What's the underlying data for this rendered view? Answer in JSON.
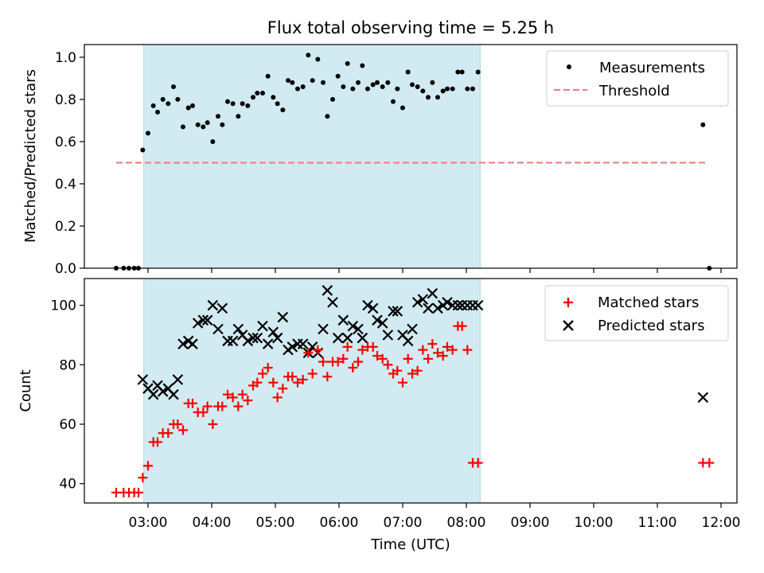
{
  "title": "Flux total observing time = 5.25 h",
  "colors": {
    "measurement": "#000000",
    "threshold": "#f08080",
    "matched": "#ff0000",
    "predicted": "#000000",
    "shade": "#add8e6"
  },
  "chart_data": [
    {
      "type": "scatter",
      "ylabel": "Matched/Predicted stars",
      "ylim": [
        0,
        1.06
      ],
      "yticks": [
        "0.0",
        "0.2",
        "0.4",
        "0.6",
        "0.8",
        "1.0"
      ],
      "yticks_values": [
        0,
        0.2,
        0.4,
        0.6,
        0.8,
        1.0
      ],
      "shaded_span": [
        "02:56",
        "08:13"
      ],
      "legend": {
        "placement": "top-right",
        "entries": [
          "Measurements",
          "Threshold"
        ]
      },
      "threshold": {
        "name": "Threshold",
        "value": 0.5,
        "x_start": "02:30",
        "x_end": "11:48"
      },
      "series": [
        {
          "name": "Measurements",
          "marker": "dot",
          "x": [
            "02:30",
            "02:37",
            "02:42",
            "02:47",
            "02:51",
            "02:55",
            "03:00",
            "03:05",
            "03:09",
            "03:14",
            "03:19",
            "03:24",
            "03:28",
            "03:33",
            "03:38",
            "03:42",
            "03:47",
            "03:52",
            "03:56",
            "04:01",
            "04:06",
            "04:10",
            "04:15",
            "04:20",
            "04:25",
            "04:29",
            "04:34",
            "04:39",
            "04:43",
            "04:48",
            "04:53",
            "04:58",
            "05:02",
            "05:07",
            "05:12",
            "05:16",
            "05:21",
            "05:26",
            "05:31",
            "05:35",
            "05:40",
            "05:45",
            "05:49",
            "05:54",
            "05:59",
            "06:04",
            "06:08",
            "06:13",
            "06:18",
            "06:22",
            "06:27",
            "06:32",
            "06:36",
            "06:41",
            "06:46",
            "06:51",
            "06:55",
            "07:00",
            "07:05",
            "07:09",
            "07:14",
            "07:19",
            "07:24",
            "07:28",
            "07:33",
            "07:38",
            "07:42",
            "07:47",
            "07:52",
            "07:56",
            "08:01",
            "08:06",
            "08:11",
            "11:43",
            "11:49"
          ],
          "y": [
            0.0,
            0.0,
            0.0,
            0.0,
            0.0,
            0.56,
            0.64,
            0.77,
            0.74,
            0.8,
            0.78,
            0.86,
            0.8,
            0.67,
            0.76,
            0.77,
            0.68,
            0.67,
            0.69,
            0.6,
            0.72,
            0.68,
            0.79,
            0.78,
            0.72,
            0.78,
            0.77,
            0.81,
            0.83,
            0.83,
            0.91,
            0.81,
            0.78,
            0.75,
            0.89,
            0.88,
            0.85,
            0.86,
            1.01,
            0.89,
            0.99,
            0.88,
            0.72,
            0.8,
            0.91,
            0.86,
            0.97,
            0.85,
            0.88,
            0.96,
            0.85,
            0.87,
            0.88,
            0.86,
            0.88,
            0.79,
            0.85,
            0.76,
            0.93,
            0.87,
            0.86,
            0.84,
            0.81,
            0.88,
            0.81,
            0.84,
            0.85,
            0.85,
            0.93,
            0.93,
            0.85,
            0.85,
            0.93,
            0.68,
            0.0
          ]
        }
      ]
    },
    {
      "type": "scatter",
      "xlabel": "Time (UTC)",
      "ylabel": "Count",
      "ylim": [
        33.5,
        109
      ],
      "yticks": [
        "40",
        "60",
        "80",
        "100"
      ],
      "yticks_values": [
        40,
        60,
        80,
        100
      ],
      "xlim": [
        "02:00",
        "12:15"
      ],
      "xticks": [
        "03:00",
        "04:00",
        "05:00",
        "06:00",
        "07:00",
        "08:00",
        "09:00",
        "10:00",
        "11:00",
        "12:00"
      ],
      "shaded_span": [
        "02:56",
        "08:13"
      ],
      "legend": {
        "placement": "top-right",
        "entries": [
          "Matched stars",
          "Predicted stars"
        ]
      },
      "series": [
        {
          "name": "Matched stars",
          "marker": "plus",
          "x": [
            "02:30",
            "02:37",
            "02:42",
            "02:47",
            "02:51",
            "02:55",
            "03:00",
            "03:05",
            "03:09",
            "03:14",
            "03:19",
            "03:24",
            "03:28",
            "03:33",
            "03:38",
            "03:42",
            "03:47",
            "03:52",
            "03:56",
            "04:01",
            "04:06",
            "04:10",
            "04:15",
            "04:20",
            "04:25",
            "04:29",
            "04:34",
            "04:39",
            "04:43",
            "04:48",
            "04:53",
            "04:58",
            "05:02",
            "05:07",
            "05:12",
            "05:16",
            "05:21",
            "05:26",
            "05:31",
            "05:35",
            "05:40",
            "05:45",
            "05:49",
            "05:54",
            "05:59",
            "06:04",
            "06:08",
            "06:13",
            "06:18",
            "06:22",
            "06:27",
            "06:32",
            "06:36",
            "06:41",
            "06:46",
            "06:51",
            "06:55",
            "07:00",
            "07:05",
            "07:09",
            "07:14",
            "07:19",
            "07:24",
            "07:28",
            "07:33",
            "07:38",
            "07:42",
            "07:47",
            "07:52",
            "07:56",
            "08:01",
            "08:06",
            "08:11",
            "11:43",
            "11:49"
          ],
          "y": [
            37,
            37,
            37,
            37,
            37,
            42,
            46,
            54,
            54,
            57,
            57,
            60,
            60,
            58,
            67,
            67,
            64,
            64,
            66,
            60,
            66,
            66,
            70,
            69,
            66,
            70,
            68,
            73,
            74,
            77,
            79,
            74,
            69,
            72,
            76,
            76,
            74,
            75,
            84,
            77,
            85,
            81,
            76,
            81,
            81,
            82,
            86,
            79,
            81,
            85,
            86,
            86,
            83,
            82,
            80,
            77,
            78,
            74,
            82,
            77,
            78,
            85,
            82,
            87,
            84,
            83,
            86,
            85,
            93,
            93,
            85,
            47,
            47,
            47,
            47
          ]
        },
        {
          "name": "Predicted stars",
          "marker": "x",
          "x": [
            "02:55",
            "03:00",
            "03:05",
            "03:09",
            "03:14",
            "03:19",
            "03:24",
            "03:28",
            "03:33",
            "03:38",
            "03:42",
            "03:47",
            "03:52",
            "03:56",
            "04:01",
            "04:06",
            "04:10",
            "04:15",
            "04:20",
            "04:25",
            "04:29",
            "04:34",
            "04:39",
            "04:43",
            "04:48",
            "04:53",
            "04:58",
            "05:02",
            "05:07",
            "05:12",
            "05:16",
            "05:21",
            "05:26",
            "05:31",
            "05:35",
            "05:40",
            "05:45",
            "05:49",
            "05:54",
            "05:59",
            "06:04",
            "06:08",
            "06:13",
            "06:18",
            "06:22",
            "06:27",
            "06:32",
            "06:36",
            "06:41",
            "06:46",
            "06:51",
            "06:55",
            "07:00",
            "07:05",
            "07:09",
            "07:14",
            "07:19",
            "07:24",
            "07:28",
            "07:33",
            "07:38",
            "07:42",
            "07:47",
            "07:52",
            "07:56",
            "08:01",
            "08:06",
            "08:11",
            "11:43"
          ],
          "y": [
            75,
            72,
            70,
            73,
            71,
            72,
            70,
            75,
            87,
            88,
            87,
            94,
            95,
            95,
            100,
            92,
            99,
            88,
            88,
            92,
            90,
            88,
            89,
            89,
            93,
            87,
            91,
            89,
            96,
            85,
            86,
            87,
            87,
            84,
            86,
            84,
            92,
            105,
            101,
            89,
            95,
            89,
            93,
            92,
            89,
            100,
            99,
            95,
            94,
            90,
            98,
            98,
            90,
            88,
            92,
            101,
            102,
            99,
            104,
            99,
            100,
            101,
            100,
            100,
            100,
            100,
            100,
            100,
            69
          ]
        }
      ]
    }
  ]
}
